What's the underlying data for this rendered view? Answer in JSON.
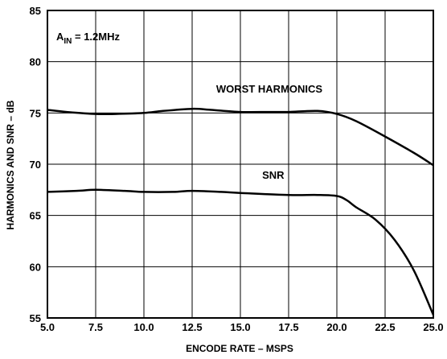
{
  "chart_data": {
    "type": "line",
    "title": "",
    "xlabel": "ENCODE RATE – MSPS",
    "ylabel": "HARMONICS AND SNR – dB",
    "xlim": [
      5.0,
      25.0
    ],
    "ylim": [
      55,
      85
    ],
    "x_ticks": [
      "5.0",
      "7.5",
      "10.0",
      "12.5",
      "15.0",
      "17.5",
      "20.0",
      "22.5",
      "25.0"
    ],
    "y_ticks": [
      "55",
      "60",
      "65",
      "70",
      "75",
      "80",
      "85"
    ],
    "grid": true,
    "annotation": {
      "prefix": "A",
      "subscript": "IN",
      "suffix": " = 1.2MHz"
    },
    "series": [
      {
        "name": "WORST HARMONICS",
        "x": [
          5.0,
          6.0,
          7.5,
          8.5,
          10.0,
          11.0,
          12.5,
          13.5,
          15.0,
          16.5,
          17.5,
          19.0,
          20.0,
          21.0,
          22.5,
          24.0,
          25.0
        ],
        "y": [
          75.3,
          75.1,
          74.9,
          74.9,
          75.0,
          75.2,
          75.4,
          75.3,
          75.1,
          75.1,
          75.1,
          75.2,
          74.9,
          74.2,
          72.7,
          71.1,
          69.9
        ]
      },
      {
        "name": "SNR",
        "x": [
          5.0,
          6.5,
          7.5,
          9.0,
          10.0,
          11.5,
          12.5,
          14.0,
          15.0,
          17.5,
          19.0,
          20.0,
          20.5,
          21.0,
          22.0,
          23.0,
          24.0,
          25.0
        ],
        "y": [
          67.3,
          67.4,
          67.5,
          67.4,
          67.3,
          67.3,
          67.4,
          67.3,
          67.2,
          67.0,
          67.0,
          66.9,
          66.5,
          65.8,
          64.6,
          62.6,
          59.6,
          55.3
        ]
      }
    ]
  }
}
